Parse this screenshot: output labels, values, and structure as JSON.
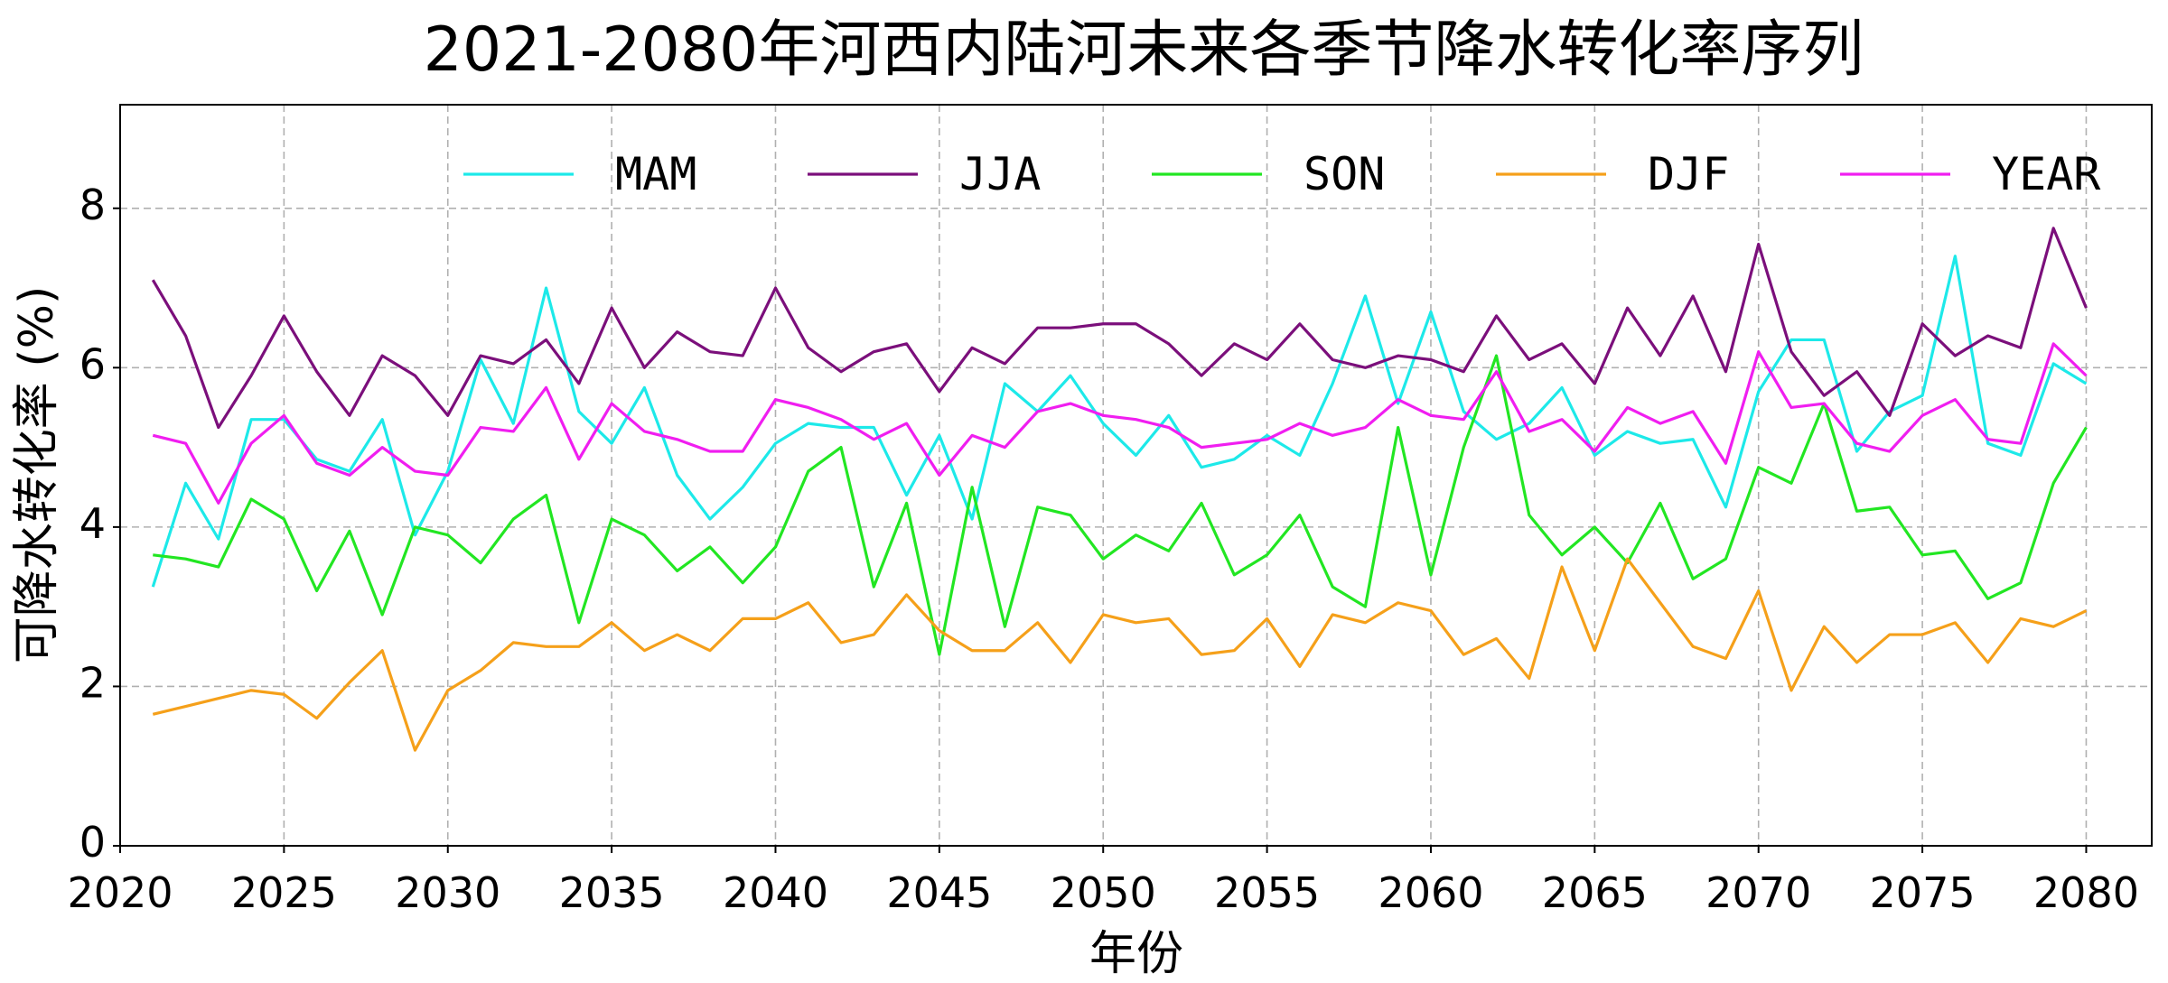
{
  "chart_data": {
    "type": "line",
    "title": "2021-2080年河西内陆河未来各季节降水转化率序列",
    "xlabel": "年份",
    "ylabel": "可降水转化率 (%)",
    "xlim": [
      2020,
      2082
    ],
    "ylim": [
      0,
      9.3
    ],
    "xticks": [
      2020,
      2025,
      2030,
      2035,
      2040,
      2045,
      2050,
      2055,
      2060,
      2065,
      2070,
      2075,
      2080
    ],
    "yticks": [
      0,
      2,
      4,
      6,
      8
    ],
    "grid": true,
    "legend_position": "top",
    "x": [
      2021,
      2022,
      2023,
      2024,
      2025,
      2026,
      2027,
      2028,
      2029,
      2030,
      2031,
      2032,
      2033,
      2034,
      2035,
      2036,
      2037,
      2038,
      2039,
      2040,
      2041,
      2042,
      2043,
      2044,
      2045,
      2046,
      2047,
      2048,
      2049,
      2050,
      2051,
      2052,
      2053,
      2054,
      2055,
      2056,
      2057,
      2058,
      2059,
      2060,
      2061,
      2062,
      2063,
      2064,
      2065,
      2066,
      2067,
      2068,
      2069,
      2070,
      2071,
      2072,
      2073,
      2074,
      2075,
      2076,
      2077,
      2078,
      2079,
      2080
    ],
    "series": [
      {
        "name": "MAM",
        "color": "#1de9e9",
        "values": [
          3.25,
          4.55,
          3.85,
          5.35,
          5.35,
          4.85,
          4.7,
          5.35,
          3.9,
          4.7,
          6.1,
          5.3,
          7.0,
          5.45,
          5.05,
          5.75,
          4.65,
          4.1,
          4.5,
          5.05,
          5.3,
          5.25,
          5.25,
          4.4,
          5.15,
          4.1,
          5.8,
          5.45,
          5.9,
          5.3,
          4.9,
          5.4,
          4.75,
          4.85,
          5.15,
          4.9,
          5.8,
          6.9,
          5.55,
          6.7,
          5.45,
          5.1,
          5.3,
          5.75,
          4.9,
          5.2,
          5.05,
          5.1,
          4.25,
          5.7,
          6.35,
          6.35,
          4.95,
          5.45,
          5.65,
          7.4,
          5.05,
          4.9,
          6.05,
          5.8
        ]
      },
      {
        "name": "JJA",
        "color": "#7b0f7b",
        "values": [
          7.1,
          6.4,
          5.25,
          5.9,
          6.65,
          5.95,
          5.4,
          6.15,
          5.9,
          5.4,
          6.15,
          6.05,
          6.35,
          5.8,
          6.75,
          6.0,
          6.45,
          6.2,
          6.15,
          7.0,
          6.25,
          5.95,
          6.2,
          6.3,
          5.7,
          6.25,
          6.05,
          6.5,
          6.5,
          6.55,
          6.55,
          6.3,
          5.9,
          6.3,
          6.1,
          6.55,
          6.1,
          6.0,
          6.15,
          6.1,
          5.95,
          6.65,
          6.1,
          6.3,
          5.8,
          6.75,
          6.15,
          6.9,
          5.95,
          7.55,
          6.2,
          5.65,
          5.95,
          5.4,
          6.55,
          6.15,
          6.4,
          6.25,
          7.75,
          6.75
        ]
      },
      {
        "name": "SON",
        "color": "#22e622",
        "values": [
          3.65,
          3.6,
          3.5,
          4.35,
          4.1,
          3.2,
          3.95,
          2.9,
          4.0,
          3.9,
          3.55,
          4.1,
          4.4,
          2.8,
          4.1,
          3.9,
          3.45,
          3.75,
          3.3,
          3.75,
          4.7,
          5.0,
          3.25,
          4.3,
          2.4,
          4.5,
          2.75,
          4.25,
          4.15,
          3.6,
          3.9,
          3.7,
          4.3,
          3.4,
          3.65,
          4.15,
          3.25,
          3.0,
          5.25,
          3.4,
          5.0,
          6.15,
          4.15,
          3.65,
          4.0,
          3.55,
          4.3,
          3.35,
          3.6,
          4.75,
          4.55,
          5.55,
          4.2,
          4.25,
          3.65,
          3.7,
          3.1,
          3.3,
          4.55,
          5.25
        ]
      },
      {
        "name": "DJF",
        "color": "#f5a01a",
        "values": [
          1.65,
          1.75,
          1.85,
          1.95,
          1.9,
          1.6,
          2.05,
          2.45,
          1.2,
          1.95,
          2.2,
          2.55,
          2.5,
          2.5,
          2.8,
          2.45,
          2.65,
          2.45,
          2.85,
          2.85,
          3.05,
          2.55,
          2.65,
          3.15,
          2.7,
          2.45,
          2.45,
          2.8,
          2.3,
          2.9,
          2.8,
          2.85,
          2.4,
          2.45,
          2.85,
          2.25,
          2.9,
          2.8,
          3.05,
          2.95,
          2.4,
          2.6,
          2.1,
          3.5,
          2.45,
          3.6,
          3.05,
          2.5,
          2.35,
          3.2,
          1.95,
          2.75,
          2.3,
          2.65,
          2.65,
          2.8,
          2.3,
          2.85,
          2.75,
          2.95
        ]
      },
      {
        "name": "YEAR",
        "color": "#f01ef0",
        "values": [
          5.15,
          5.05,
          4.3,
          5.05,
          5.4,
          4.8,
          4.65,
          5.0,
          4.7,
          4.65,
          5.25,
          5.2,
          5.75,
          4.85,
          5.55,
          5.2,
          5.1,
          4.95,
          4.95,
          5.6,
          5.5,
          5.35,
          5.1,
          5.3,
          4.65,
          5.15,
          5.0,
          5.45,
          5.55,
          5.4,
          5.35,
          5.25,
          5.0,
          5.05,
          5.1,
          5.3,
          5.15,
          5.25,
          5.6,
          5.4,
          5.35,
          5.95,
          5.2,
          5.35,
          4.95,
          5.5,
          5.3,
          5.45,
          4.8,
          6.2,
          5.5,
          5.55,
          5.05,
          4.95,
          5.4,
          5.6,
          5.1,
          5.05,
          6.3,
          5.9
        ]
      }
    ]
  }
}
